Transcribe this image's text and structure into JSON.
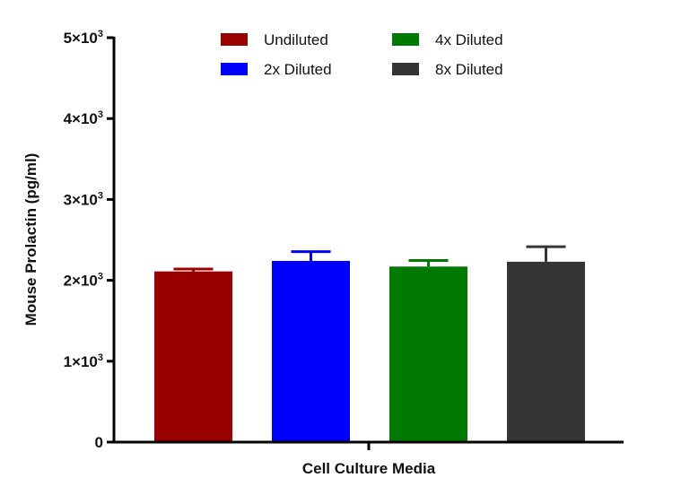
{
  "chart_data": {
    "type": "bar",
    "categories": [
      "Undiluted",
      "2x Diluted",
      "4x Diluted",
      "8x Diluted"
    ],
    "values": [
      2110,
      2240,
      2170,
      2230
    ],
    "errors": [
      30,
      115,
      75,
      185
    ],
    "colors": [
      "#9b0000",
      "#0000ff",
      "#007a00",
      "#353535"
    ],
    "xlabel": "Cell Culture Media",
    "ylabel": "Mouse Prolactin (pg/ml)",
    "ylim": [
      0,
      5000
    ],
    "yticks": [
      0,
      1000,
      2000,
      3000,
      4000,
      5000
    ],
    "ytick_labels": [
      {
        "mantissa": "0",
        "exp": ""
      },
      {
        "mantissa": "1×10",
        "exp": "3"
      },
      {
        "mantissa": "2×10",
        "exp": "3"
      },
      {
        "mantissa": "3×10",
        "exp": "3"
      },
      {
        "mantissa": "4×10",
        "exp": "3"
      },
      {
        "mantissa": "5×10",
        "exp": "3"
      }
    ],
    "legend": {
      "position": "top-center",
      "entries": [
        "Undiluted",
        "4x Diluted",
        "2x Diluted",
        "8x Diluted"
      ],
      "entry_colors": [
        "#9b0000",
        "#007a00",
        "#0000ff",
        "#353535"
      ]
    },
    "grid": false
  }
}
